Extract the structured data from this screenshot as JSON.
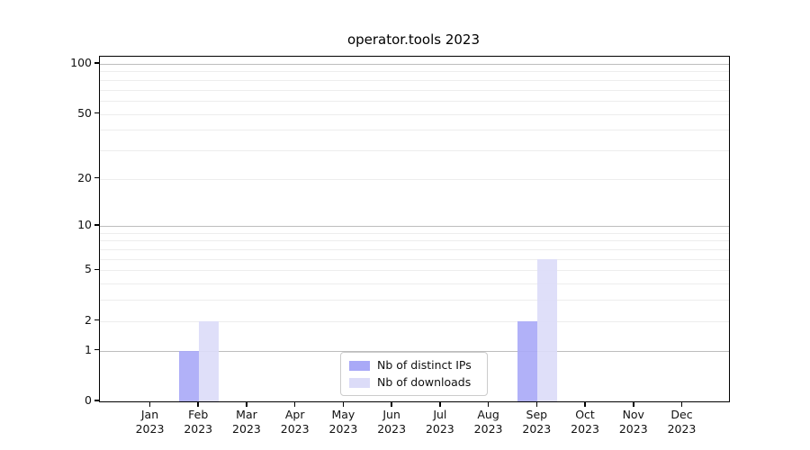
{
  "figure": {
    "background": "#ffffff"
  },
  "chart_data": {
    "type": "bar",
    "title": "operator.tools 2023",
    "categories": [
      {
        "month": "Jan",
        "year": "2023"
      },
      {
        "month": "Feb",
        "year": "2023"
      },
      {
        "month": "Mar",
        "year": "2023"
      },
      {
        "month": "Apr",
        "year": "2023"
      },
      {
        "month": "May",
        "year": "2023"
      },
      {
        "month": "Jun",
        "year": "2023"
      },
      {
        "month": "Jul",
        "year": "2023"
      },
      {
        "month": "Aug",
        "year": "2023"
      },
      {
        "month": "Sep",
        "year": "2023"
      },
      {
        "month": "Oct",
        "year": "2023"
      },
      {
        "month": "Nov",
        "year": "2023"
      },
      {
        "month": "Dec",
        "year": "2023"
      }
    ],
    "series": [
      {
        "name": "Nb of distinct IPs",
        "color": "#a9a9f7",
        "values": [
          0,
          1,
          0,
          0,
          0,
          0,
          0,
          0,
          2,
          0,
          0,
          0
        ]
      },
      {
        "name": "Nb of downloads",
        "color": "#dcdcf8",
        "values": [
          0,
          2,
          0,
          0,
          0,
          0,
          0,
          0,
          6,
          0,
          0,
          0
        ]
      }
    ],
    "y_axis": {
      "scale": "log1p",
      "tick_values": [
        0,
        1,
        2,
        5,
        10,
        20,
        50,
        100
      ],
      "major_grid_values": [
        1,
        10,
        100
      ],
      "minor_grid_values": [
        2,
        3,
        4,
        5,
        6,
        7,
        8,
        9,
        20,
        30,
        40,
        50,
        60,
        70,
        80,
        90
      ],
      "range": [
        0,
        110
      ]
    },
    "x_axis": {
      "tick_count": 12
    },
    "legend": {
      "position": "lower-center"
    },
    "grid": true,
    "colors": {
      "major_grid": "#bdbdbd",
      "minor_grid": "#ededed",
      "spine": "#000000",
      "text": "#111111",
      "legend_border": "#cccccc"
    }
  }
}
